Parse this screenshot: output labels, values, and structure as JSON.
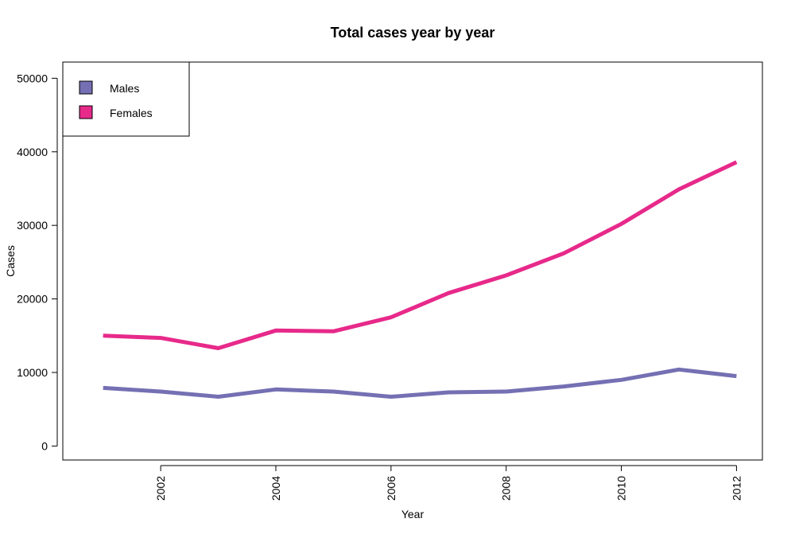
{
  "chart_data": {
    "type": "line",
    "title": "Total cases year by year",
    "xlabel": "Year",
    "ylabel": "Cases",
    "x": [
      2001,
      2002,
      2003,
      2004,
      2005,
      2006,
      2007,
      2008,
      2009,
      2010,
      2011,
      2012
    ],
    "xticks": [
      "2002",
      "2004",
      "2006",
      "2008",
      "2010",
      "2012"
    ],
    "yticks": [
      "0",
      "10000",
      "20000",
      "30000",
      "40000",
      "50000"
    ],
    "xlim": [
      2000.3,
      2012.45
    ],
    "ylim": [
      -1900,
      52200
    ],
    "grid": false,
    "legend": "top-left",
    "series": [
      {
        "name": "Males",
        "color": "#7570b3",
        "values": [
          7900,
          7400,
          6700,
          7700,
          7400,
          6700,
          7300,
          7400,
          8100,
          9000,
          10400,
          9500
        ]
      },
      {
        "name": "Females",
        "color": "#e7298a",
        "values": [
          15000,
          14700,
          13300,
          15700,
          15600,
          17500,
          20800,
          23200,
          26200,
          30200,
          34900,
          38600
        ]
      }
    ]
  }
}
